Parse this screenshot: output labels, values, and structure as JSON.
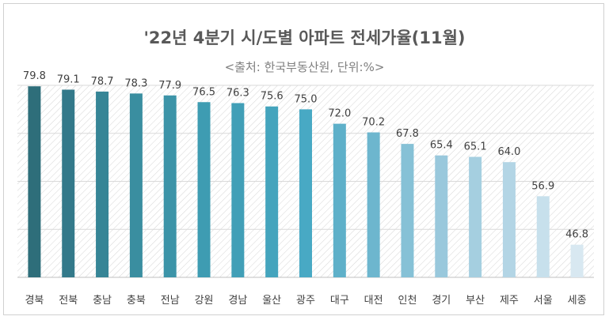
{
  "chart_data": {
    "type": "bar",
    "title": "'22년 4분기 시/도별 아파트 전세가율(11월)",
    "subtitle": "<출처: 한국부동산원, 단위:%>",
    "categories": [
      "경북",
      "전북",
      "충남",
      "충북",
      "전남",
      "강원",
      "경남",
      "울산",
      "광주",
      "대구",
      "대전",
      "인천",
      "경기",
      "부산",
      "제주",
      "서울",
      "세종"
    ],
    "values": [
      79.8,
      79.1,
      78.7,
      78.3,
      77.9,
      76.5,
      76.3,
      75.6,
      75.0,
      72.0,
      70.2,
      67.8,
      65.4,
      65.1,
      64.0,
      56.9,
      46.8
    ],
    "value_labels": [
      "79.8",
      "79.1",
      "78.7",
      "78.3",
      "77.9",
      "76.5",
      "76.3",
      "75.6",
      "75.0",
      "72.0",
      "70.2",
      "67.8",
      "65.4",
      "65.1",
      "64.0",
      "56.9",
      "46.8"
    ],
    "ylim": [
      40,
      80
    ],
    "grid": true,
    "colors": [
      "#2e6e7a",
      "#33798a",
      "#368596",
      "#3a8ea0",
      "#3c94a8",
      "#3e9cb2",
      "#419fb7",
      "#44a4bd",
      "#48a9c4",
      "#5eb0c9",
      "#6db6ce",
      "#86c1d6",
      "#99c8dc",
      "#a5cfe0",
      "#b3d5e5",
      "#c7e0ec",
      "#d8e8f1"
    ]
  }
}
